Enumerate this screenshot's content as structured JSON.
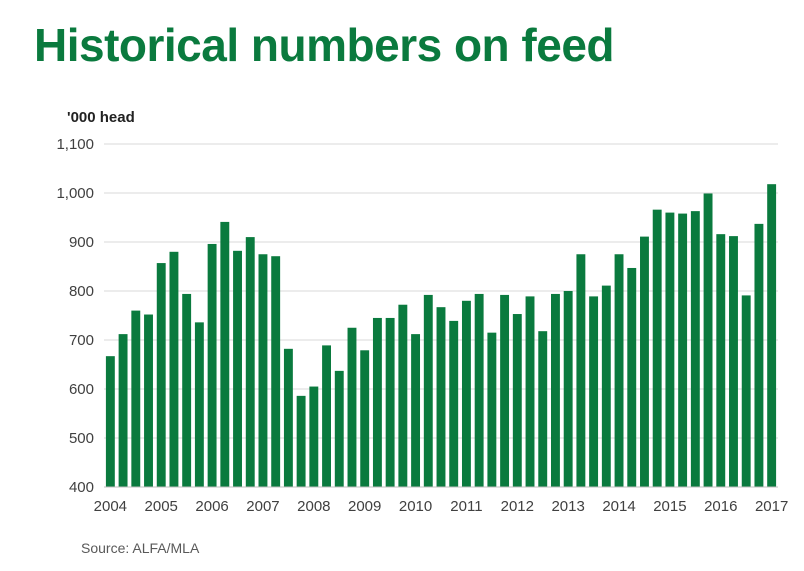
{
  "page": {
    "title": "Historical numbers on feed",
    "source": "Source: ALFA/MLA",
    "accent_color": "#0a7a3e"
  },
  "chart_data": {
    "type": "bar",
    "title": "Historical numbers on feed",
    "ylabel": "'000 head",
    "xlabel": "",
    "ylim": [
      400,
      1100
    ],
    "yticks": [
      400,
      500,
      600,
      700,
      800,
      900,
      1000,
      1100
    ],
    "ytick_labels": [
      "400",
      "500",
      "600",
      "700",
      "800",
      "900",
      "1,000",
      "1,100"
    ],
    "xtick_labels": [
      "2004",
      "2005",
      "2006",
      "2007",
      "2008",
      "2009",
      "2010",
      "2011",
      "2012",
      "2013",
      "2014",
      "2015",
      "2016",
      "2017"
    ],
    "grid": true,
    "bar_color": "#0a7a3e",
    "categories": [
      "2004 Q1",
      "2004 Q2",
      "2004 Q3",
      "2004 Q4",
      "2005 Q1",
      "2005 Q2",
      "2005 Q3",
      "2005 Q4",
      "2006 Q1",
      "2006 Q2",
      "2006 Q3",
      "2006 Q4",
      "2007 Q1",
      "2007 Q2",
      "2007 Q3",
      "2007 Q4",
      "2008 Q1",
      "2008 Q2",
      "2008 Q3",
      "2008 Q4",
      "2009 Q1",
      "2009 Q2",
      "2009 Q3",
      "2009 Q4",
      "2010 Q1",
      "2010 Q2",
      "2010 Q3",
      "2010 Q4",
      "2011 Q1",
      "2011 Q2",
      "2011 Q3",
      "2011 Q4",
      "2012 Q1",
      "2012 Q2",
      "2012 Q3",
      "2012 Q4",
      "2013 Q1",
      "2013 Q2",
      "2013 Q3",
      "2013 Q4",
      "2014 Q1",
      "2014 Q2",
      "2014 Q3",
      "2014 Q4",
      "2015 Q1",
      "2015 Q2",
      "2015 Q3",
      "2015 Q4",
      "2016 Q1",
      "2016 Q2",
      "2016 Q3",
      "2016 Q4",
      "2017 Q1"
    ],
    "values": [
      667,
      712,
      760,
      752,
      857,
      880,
      794,
      736,
      896,
      941,
      882,
      910,
      875,
      871,
      682,
      586,
      605,
      689,
      637,
      725,
      679,
      745,
      745,
      772,
      712,
      792,
      767,
      739,
      780,
      794,
      715,
      792,
      753,
      789,
      718,
      794,
      800,
      875,
      789,
      811,
      875,
      847,
      911,
      966,
      960,
      958,
      963,
      999,
      916,
      912,
      791,
      937,
      1018
    ]
  }
}
